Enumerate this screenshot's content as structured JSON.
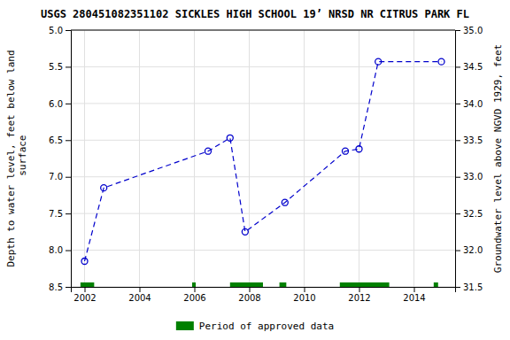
{
  "chart_data": {
    "type": "line",
    "title": "USGS 280451082351102 SICKLES HIGH SCHOOL 19’ NRSD NR CITRUS PARK FL",
    "y_label": "Depth to water level, feet below land\n surface",
    "y2_label": "Groundwater level above NGVD 1929, feet",
    "x": [
      2002.0,
      2002.7,
      2006.5,
      2007.3,
      2007.85,
      2009.3,
      2011.5,
      2012.0,
      2012.7,
      2015.0
    ],
    "values": [
      8.15,
      7.15,
      6.65,
      6.47,
      7.75,
      7.35,
      6.65,
      6.62,
      5.43,
      5.43
    ],
    "color": "#0000cc",
    "marker": "circle",
    "line_style": "dashed",
    "periods": {
      "name": "Period of approved data",
      "color": "#008000",
      "ranges": [
        [
          2001.85,
          2002.35
        ],
        [
          2005.92,
          2006.05
        ],
        [
          2007.3,
          2008.5
        ],
        [
          2009.1,
          2009.35
        ],
        [
          2011.3,
          2013.1
        ],
        [
          2014.72,
          2014.88
        ]
      ]
    },
    "xlim": [
      2001.5,
      2015.5
    ],
    "xticks": [
      2002,
      2004,
      2006,
      2008,
      2010,
      2012,
      2014
    ],
    "ylim": [
      8.5,
      5.0
    ],
    "yticks": [
      {
        "value": 5.0,
        "label": "5.0"
      },
      5.5,
      {
        "value": 6.0,
        "label": "6.0"
      },
      6.5,
      {
        "value": 7.0,
        "label": "7.0"
      },
      7.5,
      {
        "value": 8.0,
        "label": "8.0"
      },
      8.5
    ],
    "y2lim": [
      31.5,
      35.0
    ],
    "y2ticks": [
      31.5,
      {
        "value": 32.0,
        "label": "32.0"
      },
      32.5,
      {
        "value": 33.0,
        "label": "33.0"
      },
      33.5,
      {
        "value": 34.0,
        "label": "34.0"
      },
      34.5,
      {
        "value": 35.0,
        "label": "35.0"
      }
    ],
    "grid": true,
    "legend": "bottom"
  }
}
